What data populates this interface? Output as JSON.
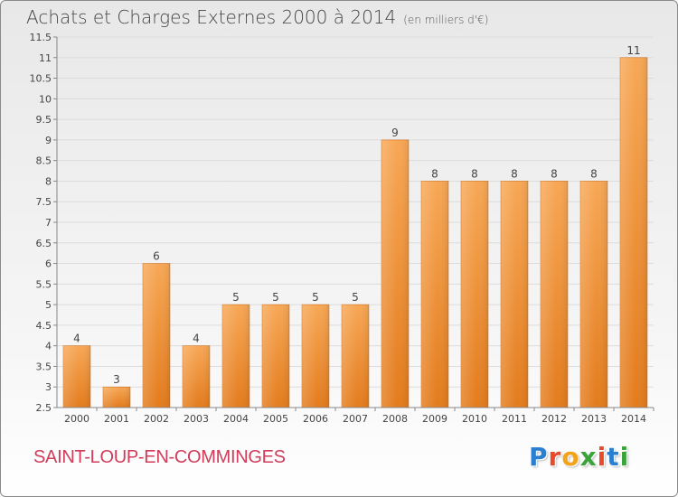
{
  "header": {
    "title": "Achats et Charges Externes 2000 à 2014",
    "unit": "(en milliers d'€)"
  },
  "footer": {
    "commune": "SAINT-LOUP-EN-COMMINGES",
    "logo_letters": [
      "P",
      "r",
      "o",
      "x",
      "i",
      "t",
      "i"
    ],
    "logo_colors": [
      "#2a7fd0",
      "#e84a2a",
      "#f2a31a",
      "#3aa33a",
      "#e84a2a",
      "#2a7fd0",
      "#3aa33a"
    ]
  },
  "colors": {
    "bar_top": "#f7a755",
    "bar_bottom": "#e37b1c",
    "axis": "#888888",
    "grid": "#dcdcdc"
  },
  "chart_data": {
    "type": "bar",
    "categories": [
      "2000",
      "2001",
      "2002",
      "2003",
      "2004",
      "2005",
      "2006",
      "2007",
      "2008",
      "2009",
      "2010",
      "2011",
      "2012",
      "2013",
      "2014"
    ],
    "values": [
      4,
      3,
      6,
      4,
      5,
      5,
      5,
      5,
      9,
      8,
      8,
      8,
      8,
      8,
      11
    ],
    "data_labels": [
      "4",
      "3",
      "6",
      "4",
      "5",
      "5",
      "5",
      "5",
      "9",
      "8",
      "8",
      "8",
      "8",
      "8",
      "11"
    ],
    "ylim": [
      2.5,
      11.5
    ],
    "yticks": [
      2.5,
      3,
      3.5,
      4,
      4.5,
      5,
      5.5,
      6,
      6.5,
      7,
      7.5,
      8,
      8.5,
      9,
      9.5,
      10,
      10.5,
      11,
      11.5
    ],
    "ytick_labels": [
      "2.5",
      "3",
      "3.5",
      "4",
      "4.5",
      "5",
      "5.5",
      "6",
      "6.5",
      "7",
      "7.5",
      "8",
      "8.5",
      "9",
      "9.5",
      "10",
      "10.5",
      "11",
      "11.5"
    ],
    "title": "Achats et Charges Externes 2000 à 2014",
    "xlabel": "",
    "ylabel": "",
    "grid": true
  }
}
